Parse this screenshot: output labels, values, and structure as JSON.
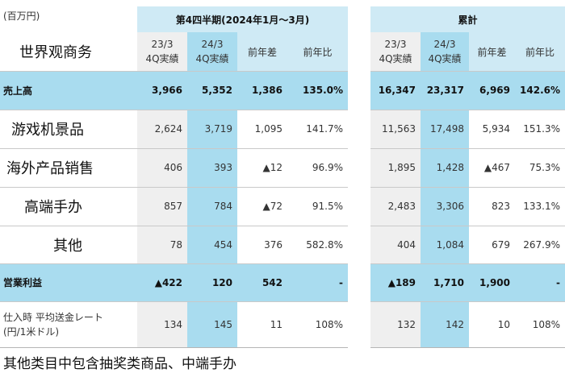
{
  "unit_label": "(百万円)",
  "title_cell": "世界观商务",
  "section_q4": "第4四半期(2024年1月～3月)",
  "section_cum": "累計",
  "col_headers": {
    "prev": [
      "23/3",
      "4Q実績"
    ],
    "curr": [
      "24/3",
      "4Q実績"
    ],
    "diff": "前年差",
    "ratio": "前年比"
  },
  "rows": [
    {
      "label": "売上高",
      "q4": [
        "3,966",
        "5,352",
        "1,386",
        "135.0%"
      ],
      "cum": [
        "16,347",
        "23,317",
        "6,969",
        "142.6%"
      ]
    },
    {
      "label": "游戏机景品",
      "q4": [
        "2,624",
        "3,719",
        "1,095",
        "141.7%"
      ],
      "cum": [
        "11,563",
        "17,498",
        "5,934",
        "151.3%"
      ]
    },
    {
      "label": "海外产品销售",
      "q4": [
        "406",
        "393",
        "▲12",
        "96.9%"
      ],
      "cum": [
        "1,895",
        "1,428",
        "▲467",
        "75.3%"
      ]
    },
    {
      "label": "高端手办",
      "q4": [
        "857",
        "784",
        "▲72",
        "91.5%"
      ],
      "cum": [
        "2,483",
        "3,306",
        "823",
        "133.1%"
      ]
    },
    {
      "label": "其他",
      "q4": [
        "78",
        "454",
        "376",
        "582.8%"
      ],
      "cum": [
        "404",
        "1,084",
        "679",
        "267.9%"
      ]
    },
    {
      "label": "営業利益",
      "q4": [
        "▲422",
        "120",
        "542",
        "-"
      ],
      "cum": [
        "▲189",
        "1,710",
        "1,900",
        "-"
      ]
    },
    {
      "label": [
        "仕入時 平均送金レート",
        "(円/1米ドル)"
      ],
      "q4": [
        "134",
        "145",
        "11",
        "108%"
      ],
      "cum": [
        "132",
        "142",
        "10",
        "108%"
      ]
    }
  ],
  "footnote": "其他类目中包含抽奖类商品、中端手办"
}
